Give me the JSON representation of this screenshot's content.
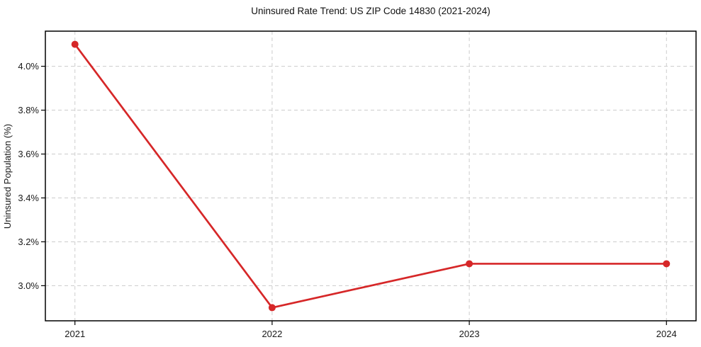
{
  "chart_data": {
    "type": "line",
    "title": "Uninsured Rate Trend: US ZIP Code 14830 (2021-2024)",
    "xlabel": "",
    "ylabel": "Uninsured Population (%)",
    "x": [
      2021,
      2022,
      2023,
      2024
    ],
    "xtick_labels": [
      "2021",
      "2022",
      "2023",
      "2024"
    ],
    "series": [
      {
        "name": "uninsured-rate",
        "values": [
          4.1,
          2.9,
          3.1,
          3.1
        ],
        "color": "#d62728",
        "marker": "circle"
      }
    ],
    "yticks": [
      3.0,
      3.2,
      3.4,
      3.6,
      3.8,
      4.0
    ],
    "ytick_labels": [
      "3.0%",
      "3.2%",
      "3.4%",
      "3.6%",
      "3.8%",
      "4.0%"
    ],
    "xlim": [
      2020.85,
      2024.15
    ],
    "ylim": [
      2.84,
      4.16
    ],
    "grid": true,
    "grid_style": "dashed",
    "legend": "none",
    "colors": {
      "line": "#d62728",
      "grid": "#cccccc",
      "spine": "#000000",
      "text": "#1a1a1a",
      "background": "#ffffff"
    }
  }
}
